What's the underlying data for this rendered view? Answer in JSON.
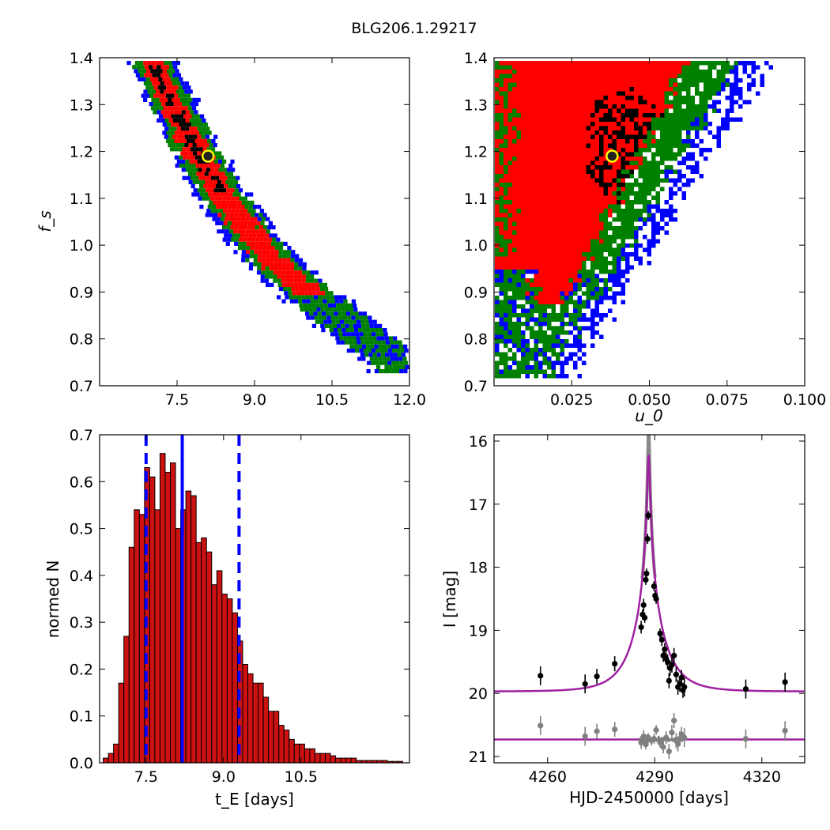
{
  "figure_title": "BLG206.1.29217",
  "colors": {
    "sigma1": "#000000",
    "sigma2": "#ff0000",
    "sigma3": "#008000",
    "sigma4": "#0000ff",
    "best_fit_marker_fill": "#222222",
    "best_fit_marker_edge": "#ffff00",
    "hist_fill": "#cc1111",
    "hist_edge": "#000000",
    "median_line": "#0000ff",
    "model_curve": "#a020a0",
    "data_points": "#000000",
    "residual_points": "#808080"
  },
  "chart_data": [
    {
      "type": "heatmap",
      "panel": "top-left",
      "xlabel": "",
      "ylabel": "f_s",
      "xlim": [
        6.0,
        12.0
      ],
      "ylim": [
        0.7,
        1.4
      ],
      "xticks": [
        "7.5",
        "9.0",
        "10.5",
        "12.0"
      ],
      "yticks": [
        "0.7",
        "0.8",
        "0.9",
        "1.0",
        "1.1",
        "1.2",
        "1.3",
        "1.4"
      ],
      "levels": [
        "1-sigma (black)",
        "2-sigma (red)",
        "3-sigma (green)",
        "4-sigma (blue)"
      ],
      "band_ridge": [
        [
          7.0,
          1.39
        ],
        [
          7.8,
          1.21
        ],
        [
          8.4,
          1.1
        ],
        [
          9.0,
          1.01
        ],
        [
          9.7,
          0.93
        ],
        [
          10.5,
          0.86
        ],
        [
          11.3,
          0.79
        ],
        [
          11.9,
          0.74
        ]
      ],
      "best_fit": {
        "x": 8.1,
        "y": 1.19
      },
      "grid": false
    },
    {
      "type": "heatmap",
      "panel": "top-right",
      "xlabel": "u_0",
      "ylabel": "",
      "xlim": [
        0.0,
        0.1
      ],
      "ylim": [
        0.7,
        1.4
      ],
      "xticks": [
        "0.025",
        "0.050",
        "0.075",
        "0.100"
      ],
      "yticks": [
        "0.7",
        "0.8",
        "0.9",
        "1.0",
        "1.1",
        "1.2",
        "1.3",
        "1.4"
      ],
      "levels": [
        "1-sigma (black)",
        "2-sigma (red)",
        "3-sigma (green)",
        "4-sigma (blue)"
      ],
      "best_fit": {
        "x": 0.038,
        "y": 1.19
      },
      "grid": false
    },
    {
      "type": "bar",
      "panel": "bottom-left",
      "xlabel": "t_E [days]",
      "ylabel": "normed N",
      "xlim": [
        6.6,
        12.6
      ],
      "ylim": [
        0.0,
        0.7
      ],
      "xticks": [
        "7.5",
        "9.0",
        "10.5"
      ],
      "yticks": [
        "0.0",
        "0.1",
        "0.2",
        "0.3",
        "0.4",
        "0.5",
        "0.6",
        "0.7"
      ],
      "bin_start": 6.67,
      "bin_width": 0.1,
      "values": [
        0.01,
        0.02,
        0.04,
        0.17,
        0.27,
        0.46,
        0.54,
        0.53,
        0.63,
        0.61,
        0.54,
        0.66,
        0.62,
        0.64,
        0.5,
        0.54,
        0.58,
        0.57,
        0.47,
        0.48,
        0.45,
        0.38,
        0.41,
        0.36,
        0.35,
        0.32,
        0.26,
        0.21,
        0.19,
        0.17,
        0.17,
        0.14,
        0.11,
        0.11,
        0.08,
        0.07,
        0.05,
        0.04,
        0.04,
        0.03,
        0.03,
        0.02,
        0.02,
        0.02,
        0.015,
        0.01,
        0.01,
        0.01,
        0.01,
        0.005,
        0.005,
        0.005,
        0.005,
        0.005,
        0.005,
        0.003,
        0.003,
        0.003
      ],
      "median": 8.2,
      "lower_bound": 7.5,
      "upper_bound": 9.3,
      "grid": false
    },
    {
      "type": "line",
      "panel": "bottom-right",
      "xlabel": "HJD-2450000 [days]",
      "ylabel": "I [mag]",
      "xlim": [
        4245,
        4332
      ],
      "ylim": [
        21.1,
        15.9
      ],
      "xticks": [
        "4260",
        "4290",
        "4320"
      ],
      "yticks": [
        "16",
        "17",
        "18",
        "19",
        "20",
        "21"
      ],
      "model": {
        "t0": 4288.3,
        "u0": 0.038,
        "tE": 8.1,
        "baseline": 19.97,
        "fs": 1.19
      },
      "residual_baseline": 20.73,
      "data_points": [
        {
          "x": 4258.0,
          "y": 19.72,
          "err": 0.15
        },
        {
          "x": 4270.5,
          "y": 19.85,
          "err": 0.15
        },
        {
          "x": 4273.8,
          "y": 19.73,
          "err": 0.12
        },
        {
          "x": 4278.8,
          "y": 19.53,
          "err": 0.12
        },
        {
          "x": 4286.2,
          "y": 18.95,
          "err": 0.1
        },
        {
          "x": 4286.6,
          "y": 18.75,
          "err": 0.08
        },
        {
          "x": 4286.9,
          "y": 18.6,
          "err": 0.1
        },
        {
          "x": 4287.2,
          "y": 18.8,
          "err": 0.08
        },
        {
          "x": 4287.5,
          "y": 18.2,
          "err": 0.08
        },
        {
          "x": 4287.7,
          "y": 18.1,
          "err": 0.08
        },
        {
          "x": 4288.0,
          "y": 17.55,
          "err": 0.08
        },
        {
          "x": 4288.2,
          "y": 17.18,
          "err": 0.07
        },
        {
          "x": 4289.8,
          "y": 18.3,
          "err": 0.08
        },
        {
          "x": 4290.1,
          "y": 18.45,
          "err": 0.08
        },
        {
          "x": 4290.4,
          "y": 18.5,
          "err": 0.08
        },
        {
          "x": 4291.5,
          "y": 19.05,
          "err": 0.08
        },
        {
          "x": 4292.0,
          "y": 19.15,
          "err": 0.1
        },
        {
          "x": 4292.4,
          "y": 19.4,
          "err": 0.1
        },
        {
          "x": 4292.8,
          "y": 19.3,
          "err": 0.1
        },
        {
          "x": 4293.2,
          "y": 19.45,
          "err": 0.1
        },
        {
          "x": 4293.6,
          "y": 19.5,
          "err": 0.12
        },
        {
          "x": 4294.0,
          "y": 19.8,
          "err": 0.12
        },
        {
          "x": 4294.3,
          "y": 19.6,
          "err": 0.12
        },
        {
          "x": 4294.8,
          "y": 19.55,
          "err": 0.12
        },
        {
          "x": 4295.4,
          "y": 19.4,
          "err": 0.12
        },
        {
          "x": 4296.0,
          "y": 19.7,
          "err": 0.12
        },
        {
          "x": 4296.5,
          "y": 19.9,
          "err": 0.12
        },
        {
          "x": 4297.0,
          "y": 19.85,
          "err": 0.12
        },
        {
          "x": 4297.5,
          "y": 19.75,
          "err": 0.12
        },
        {
          "x": 4297.9,
          "y": 19.95,
          "err": 0.12
        },
        {
          "x": 4298.3,
          "y": 19.9,
          "err": 0.15
        },
        {
          "x": 4315.5,
          "y": 19.93,
          "err": 0.15
        },
        {
          "x": 4326.5,
          "y": 19.82,
          "err": 0.15
        }
      ],
      "residual_points": [
        {
          "x": 4258.0,
          "y": 20.51,
          "err": 0.15
        },
        {
          "x": 4270.5,
          "y": 20.68,
          "err": 0.15
        },
        {
          "x": 4273.8,
          "y": 20.6,
          "err": 0.12
        },
        {
          "x": 4278.8,
          "y": 20.57,
          "err": 0.12
        },
        {
          "x": 4286.2,
          "y": 20.78,
          "err": 0.1
        },
        {
          "x": 4286.9,
          "y": 20.68,
          "err": 0.1
        },
        {
          "x": 4287.5,
          "y": 20.81,
          "err": 0.08
        },
        {
          "x": 4288.2,
          "y": 20.7,
          "err": 0.07
        },
        {
          "x": 4289.8,
          "y": 20.72,
          "err": 0.08
        },
        {
          "x": 4290.4,
          "y": 20.58,
          "err": 0.08
        },
        {
          "x": 4291.5,
          "y": 20.78,
          "err": 0.08
        },
        {
          "x": 4292.4,
          "y": 20.85,
          "err": 0.1
        },
        {
          "x": 4293.2,
          "y": 20.7,
          "err": 0.1
        },
        {
          "x": 4294.0,
          "y": 20.92,
          "err": 0.12
        },
        {
          "x": 4294.8,
          "y": 20.62,
          "err": 0.12
        },
        {
          "x": 4295.4,
          "y": 20.43,
          "err": 0.12
        },
        {
          "x": 4296.0,
          "y": 20.75,
          "err": 0.12
        },
        {
          "x": 4296.5,
          "y": 20.8,
          "err": 0.12
        },
        {
          "x": 4297.0,
          "y": 20.72,
          "err": 0.12
        },
        {
          "x": 4297.5,
          "y": 20.65,
          "err": 0.12
        },
        {
          "x": 4298.3,
          "y": 20.7,
          "err": 0.15
        },
        {
          "x": 4315.5,
          "y": 20.72,
          "err": 0.15
        },
        {
          "x": 4326.5,
          "y": 20.59,
          "err": 0.15
        }
      ],
      "grid": false
    }
  ]
}
